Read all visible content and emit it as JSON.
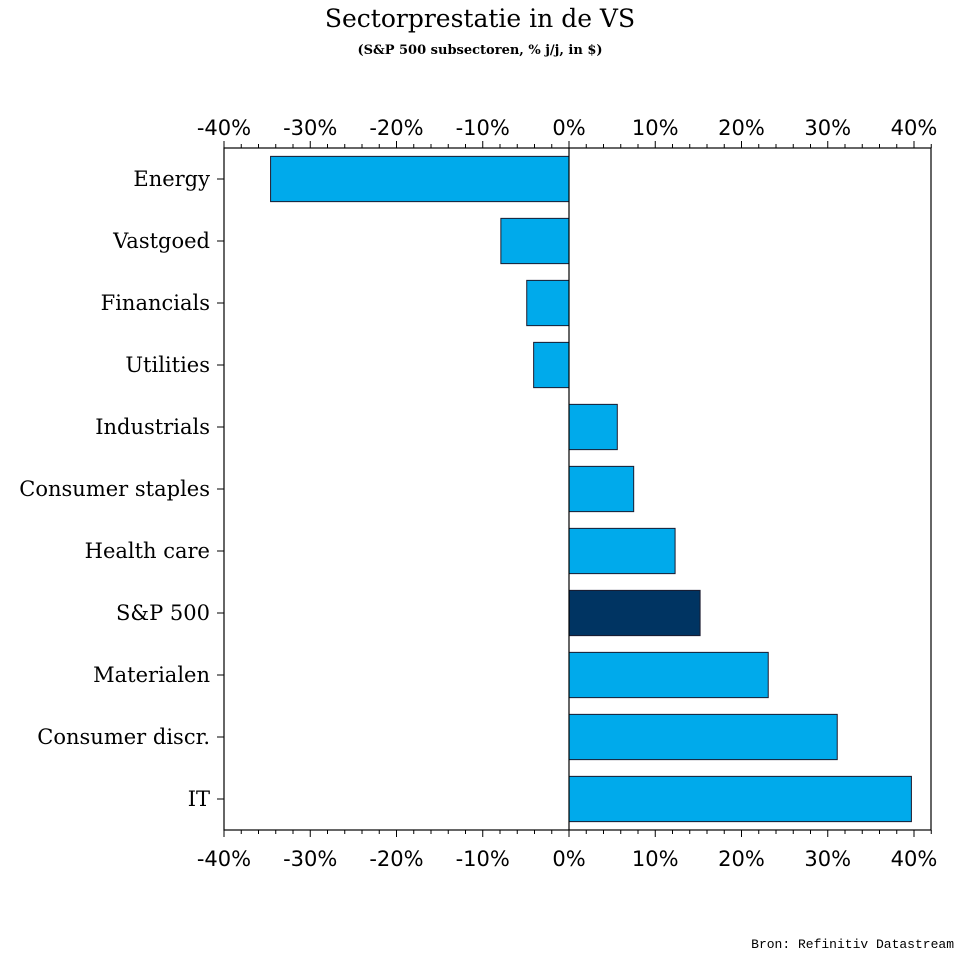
{
  "chart_data": {
    "type": "bar",
    "orientation": "horizontal",
    "title": "Sectorprestatie in de VS",
    "subtitle": "(S&P 500 subsectoren, % j/j, in $)",
    "source": "Bron: Refinitiv Datastream",
    "xlabel": "",
    "ylabel": "",
    "xlim": [
      -40,
      42
    ],
    "xticks": [
      -40,
      -30,
      -20,
      -10,
      0,
      10,
      20,
      30,
      40
    ],
    "xtick_labels": [
      "-40%",
      "-30%",
      "-20%",
      "-10%",
      "0%",
      "10%",
      "20%",
      "30%",
      "40%"
    ],
    "minor_tick_step": 2,
    "grid": false,
    "axis_labels_top_and_bottom": true,
    "categories": [
      "Energy",
      "Vastgoed",
      "Financials",
      "Utilities",
      "Industrials",
      "Consumer staples",
      "Health care",
      "S&P 500",
      "Materialen",
      "Consumer discr.",
      "IT"
    ],
    "values": [
      -34.6,
      -7.9,
      -4.9,
      -4.1,
      5.6,
      7.5,
      12.3,
      15.2,
      23.1,
      31.1,
      39.7
    ],
    "highlight": "S&P 500",
    "colors": {
      "default": "#00aaeb",
      "highlight": "#003462",
      "outline": "#1a1a2e"
    }
  }
}
